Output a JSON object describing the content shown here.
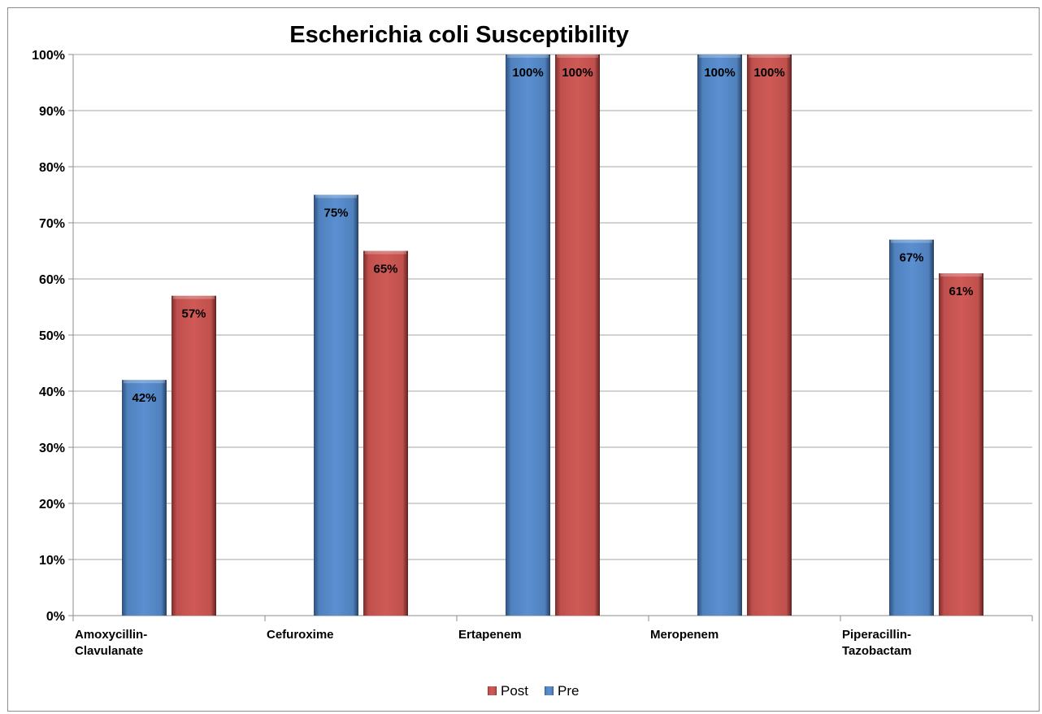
{
  "chart_data": {
    "type": "bar",
    "title": "Escherichia coli Susceptibility",
    "categories": [
      [
        "Amoxycillin-",
        "Clavulanate"
      ],
      [
        "Cefuroxime"
      ],
      [
        "Ertapenem"
      ],
      [
        "Meropenem"
      ],
      [
        "Piperacillin-",
        "Tazobactam"
      ]
    ],
    "series": [
      {
        "name": "Pre",
        "color": "#4f81bd",
        "values": [
          42,
          75,
          100,
          100,
          67
        ],
        "labels": [
          "42%",
          "75%",
          "100%",
          "100%",
          "67%"
        ]
      },
      {
        "name": "Post",
        "color": "#c0504d",
        "values": [
          57,
          65,
          100,
          100,
          61
        ],
        "labels": [
          "57%",
          "65%",
          "100%",
          "100%",
          "61%"
        ]
      }
    ],
    "y_ticks": [
      "0%",
      "10%",
      "20%",
      "30%",
      "40%",
      "50%",
      "60%",
      "70%",
      "80%",
      "90%",
      "100%"
    ],
    "ylim": [
      0,
      100
    ],
    "xlabel": "",
    "ylabel": "",
    "grid": true,
    "legend": {
      "position": "bottom",
      "order": [
        "Post",
        "Pre"
      ]
    }
  }
}
